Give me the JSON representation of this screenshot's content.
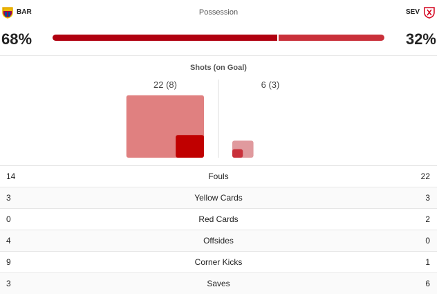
{
  "header": {
    "home_team": "BAR",
    "away_team": "SEV",
    "possession_title": "Possession",
    "home_possession": {
      "value": 68,
      "label": "68%"
    },
    "away_possession": {
      "value": 32,
      "label": "32%"
    }
  },
  "shots": {
    "title": "Shots (on Goal)",
    "home": {
      "label": "22 (8)",
      "total": 22,
      "on_goal": 8
    },
    "away": {
      "label": "6 (3)",
      "total": 6,
      "on_goal": 3
    }
  },
  "stats": [
    {
      "label": "Fouls",
      "home": "14",
      "away": "22"
    },
    {
      "label": "Yellow Cards",
      "home": "3",
      "away": "3"
    },
    {
      "label": "Red Cards",
      "home": "0",
      "away": "2"
    },
    {
      "label": "Offsides",
      "home": "4",
      "away": "0"
    },
    {
      "label": "Corner Kicks",
      "home": "9",
      "away": "1"
    },
    {
      "label": "Saves",
      "home": "3",
      "away": "6"
    }
  ]
}
